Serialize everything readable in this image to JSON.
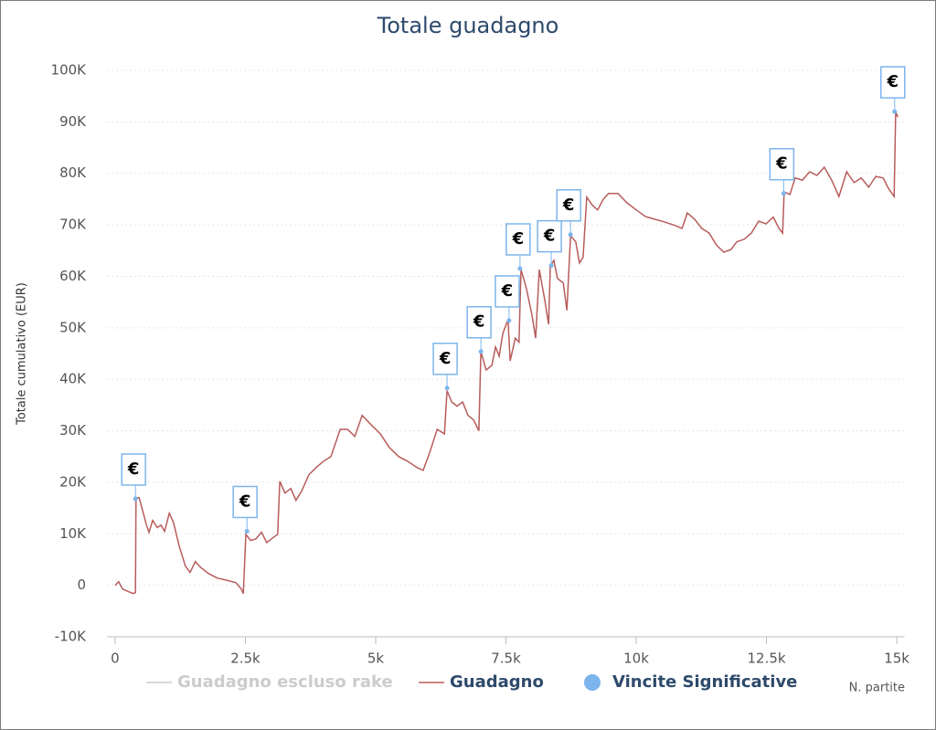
{
  "chart_data": {
    "type": "line",
    "title": "Totale guadagno",
    "x_label": "N. partite",
    "y_label": "Totale cumulativo (EUR)",
    "xlim": [
      -150,
      15150
    ],
    "ylim": [
      -10000,
      100000
    ],
    "xticks": [
      0,
      {
        "value": 2500,
        "label": "2.5k"
      },
      {
        "value": 5000,
        "label": "5k"
      },
      {
        "value": 7500,
        "label": "7.5k"
      },
      {
        "value": 10000,
        "label": "10k"
      },
      {
        "value": 12500,
        "label": "12.5k"
      },
      {
        "value": 15000,
        "label": "15k"
      }
    ],
    "yticks": [
      {
        "value": -10000,
        "label": "-10K"
      },
      0,
      {
        "value": 10000,
        "label": "10K"
      },
      {
        "value": 20000,
        "label": "20K"
      },
      {
        "value": 30000,
        "label": "30K"
      },
      {
        "value": 40000,
        "label": "40K"
      },
      {
        "value": 50000,
        "label": "50K"
      },
      {
        "value": 60000,
        "label": "60K"
      },
      {
        "value": 70000,
        "label": "70K"
      },
      {
        "value": 80000,
        "label": "80K"
      },
      {
        "value": 90000,
        "label": "90K"
      },
      {
        "value": 100000,
        "label": "100K"
      }
    ],
    "grid": true,
    "series": [
      {
        "name": "Guadagno escluso rake",
        "color": "#cccccc",
        "visible": false
      },
      {
        "name": "Guadagno",
        "color": "#b85c5c",
        "x": [
          0,
          70,
          140,
          250,
          350,
          390,
          400,
          460,
          530,
          600,
          650,
          720,
          810,
          880,
          950,
          1040,
          1120,
          1230,
          1350,
          1440,
          1540,
          1650,
          1790,
          1960,
          2180,
          2320,
          2420,
          2460,
          2510,
          2600,
          2700,
          2810,
          2910,
          3050,
          3120,
          3160,
          3260,
          3370,
          3470,
          3580,
          3720,
          3860,
          4000,
          4140,
          4320,
          4460,
          4600,
          4740,
          4910,
          5090,
          5260,
          5440,
          5610,
          5790,
          5910,
          6040,
          6180,
          6320,
          6370,
          6460,
          6560,
          6670,
          6770,
          6880,
          6980,
          7020,
          7120,
          7230,
          7300,
          7370,
          7440,
          7540,
          7580,
          7680,
          7750,
          7790,
          7890,
          8000,
          8070,
          8140,
          8250,
          8320,
          8350,
          8420,
          8490,
          8600,
          8670,
          8740,
          8840,
          8910,
          8980,
          9050,
          9160,
          9260,
          9370,
          9470,
          9650,
          9820,
          10000,
          10180,
          10350,
          10530,
          10740,
          10880,
          10980,
          11120,
          11260,
          11400,
          11540,
          11680,
          11820,
          11930,
          12070,
          12210,
          12350,
          12490,
          12630,
          12740,
          12810,
          12840,
          12950,
          13050,
          13190,
          13330,
          13470,
          13610,
          13750,
          13890,
          14040,
          14180,
          14320,
          14460,
          14600,
          14740,
          14840,
          14950,
          14980,
          15020
        ],
        "values": [
          0,
          700,
          -700,
          -1200,
          -1600,
          -1400,
          17000,
          17000,
          14400,
          11700,
          10300,
          12600,
          11200,
          11700,
          10500,
          14000,
          12200,
          7600,
          3700,
          2500,
          4600,
          3400,
          2300,
          1400,
          900,
          500,
          -700,
          -1600,
          9900,
          8700,
          9000,
          10300,
          8300,
          9400,
          9900,
          20200,
          17900,
          18800,
          16500,
          18300,
          21500,
          22900,
          24100,
          25000,
          30300,
          30300,
          28900,
          33000,
          31200,
          29400,
          26800,
          25000,
          24100,
          22900,
          22300,
          25900,
          30300,
          29400,
          37800,
          35600,
          34800,
          35600,
          33000,
          32100,
          30000,
          45400,
          41800,
          42700,
          46300,
          44500,
          48900,
          51600,
          43600,
          48000,
          47200,
          61300,
          57800,
          52500,
          48000,
          61300,
          55100,
          50700,
          61900,
          63100,
          59600,
          58700,
          53400,
          67900,
          66700,
          62600,
          63700,
          75400,
          73800,
          72900,
          75000,
          76100,
          76100,
          74300,
          72900,
          71600,
          71100,
          70600,
          69900,
          69300,
          72300,
          71100,
          69300,
          68400,
          66100,
          64700,
          65200,
          66700,
          67200,
          68400,
          70700,
          70200,
          71500,
          69300,
          68400,
          76400,
          75900,
          79100,
          78700,
          80300,
          79600,
          81200,
          78700,
          75500,
          80300,
          78200,
          79100,
          77300,
          79400,
          79100,
          77100,
          75500,
          92000,
          90900
        ]
      },
      {
        "name": "Vincite Significative",
        "color": "#7cb5ec",
        "type": "flags",
        "label": "€",
        "x": [
          390,
          2530,
          6370,
          7020,
          7560,
          7770,
          8370,
          8740,
          12830,
          14960
        ],
        "values": [
          16800,
          10500,
          38300,
          45400,
          51400,
          61500,
          62100,
          68100,
          76100,
          92000
        ]
      }
    ]
  }
}
